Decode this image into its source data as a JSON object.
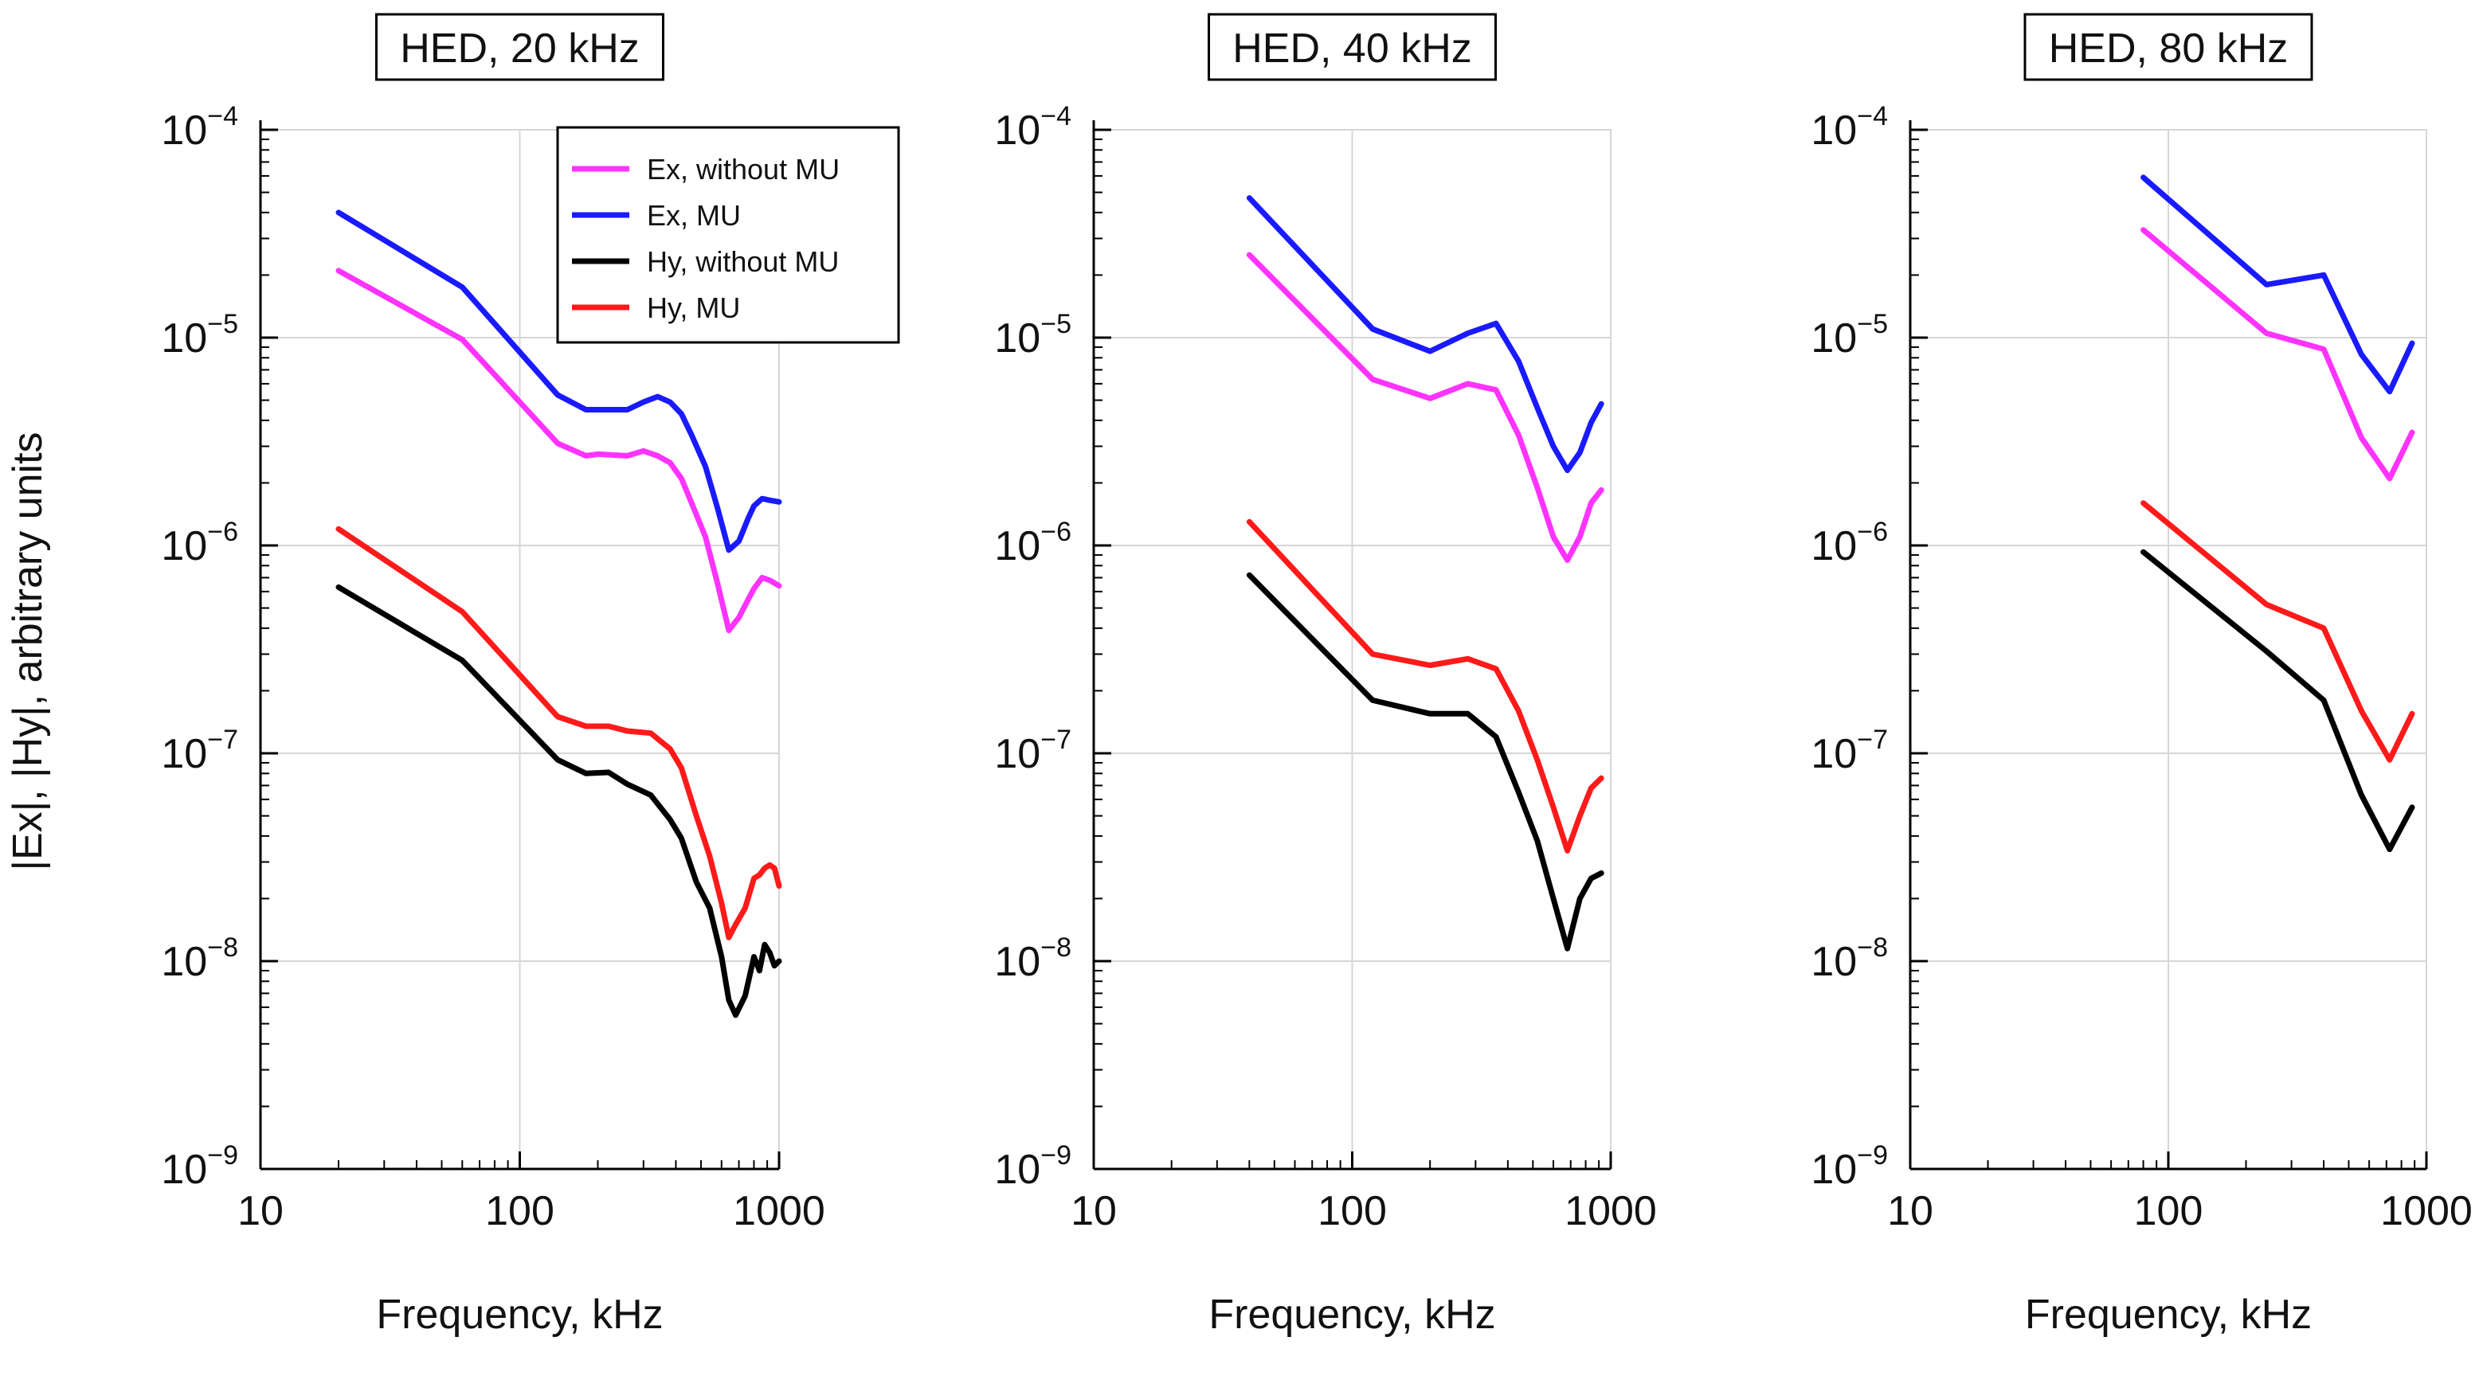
{
  "page_ylabel": "|Ex|, |Hy|, arbitrary units",
  "legend": [
    {
      "label": "Ex, without MU",
      "color": "#ff33ff"
    },
    {
      "label": "Ex, MU",
      "color": "#1a1aff"
    },
    {
      "label": "Hy, without MU",
      "color": "#000000"
    },
    {
      "label": "Hy, MU",
      "color": "#ff1a1a"
    }
  ],
  "chart_data": [
    {
      "type": "line",
      "title": "HED, 20 kHz",
      "xlabel": "Frequency, kHz",
      "ylabel": "|Ex|, |Hy|, arbitrary units",
      "xscale": "log",
      "yscale": "log",
      "xlim": [
        10,
        1000
      ],
      "ylim": [
        1e-09,
        0.0001
      ],
      "xticks": [
        {
          "v": 10,
          "label": "10"
        },
        {
          "v": 100,
          "label": "100"
        },
        {
          "v": 1000,
          "label": "1000"
        }
      ],
      "yticks": [
        {
          "v": 1e-09,
          "label": "10",
          "exp": "−9"
        },
        {
          "v": 1e-08,
          "label": "10",
          "exp": "−8"
        },
        {
          "v": 1e-07,
          "label": "10",
          "exp": "−7"
        },
        {
          "v": 1e-06,
          "label": "10",
          "exp": "−6"
        },
        {
          "v": 1e-05,
          "label": "10",
          "exp": "−5"
        },
        {
          "v": 0.0001,
          "label": "10",
          "exp": "−4"
        }
      ],
      "grid": true,
      "legend": true,
      "series": [
        {
          "name": "Ex, without MU",
          "color": "#ff33ff",
          "x": [
            20,
            60,
            140,
            180,
            200,
            260,
            300,
            340,
            380,
            420,
            460,
            520,
            580,
            640,
            700,
            760,
            800,
            860,
            920,
            1000
          ],
          "y": [
            2.1e-05,
            9.8e-06,
            3.1e-06,
            2.7e-06,
            2.75e-06,
            2.7e-06,
            2.85e-06,
            2.7e-06,
            2.5e-06,
            2.1e-06,
            1.6e-06,
            1.1e-06,
            6.5e-07,
            3.9e-07,
            4.5e-07,
            5.5e-07,
            6.2e-07,
            7e-07,
            6.8e-07,
            6.4e-07
          ]
        },
        {
          "name": "Ex, MU",
          "color": "#1a1aff",
          "x": [
            20,
            60,
            140,
            180,
            200,
            260,
            300,
            340,
            380,
            420,
            460,
            520,
            580,
            640,
            700,
            760,
            800,
            860,
            920,
            1000
          ],
          "y": [
            4e-05,
            1.75e-05,
            5.3e-06,
            4.5e-06,
            4.5e-06,
            4.5e-06,
            4.9e-06,
            5.2e-06,
            4.9e-06,
            4.3e-06,
            3.4e-06,
            2.4e-06,
            1.5e-06,
            9.5e-07,
            1.05e-06,
            1.35e-06,
            1.55e-06,
            1.68e-06,
            1.65e-06,
            1.62e-06
          ]
        },
        {
          "name": "Hy, without MU",
          "color": "#000000",
          "x": [
            20,
            60,
            140,
            180,
            220,
            260,
            320,
            380,
            420,
            480,
            540,
            600,
            640,
            680,
            740,
            800,
            840,
            880,
            920,
            960,
            1000
          ],
          "y": [
            6.3e-07,
            2.8e-07,
            9.3e-08,
            8e-08,
            8.1e-08,
            7.1e-08,
            6.3e-08,
            4.8e-08,
            3.9e-08,
            2.4e-08,
            1.8e-08,
            1.05e-08,
            6.5e-09,
            5.5e-09,
            6.8e-09,
            1.05e-08,
            9e-09,
            1.2e-08,
            1.1e-08,
            9.5e-09,
            1e-08
          ]
        },
        {
          "name": "Hy, MU",
          "color": "#ff1a1a",
          "x": [
            20,
            60,
            140,
            180,
            220,
            260,
            320,
            380,
            420,
            480,
            540,
            600,
            640,
            680,
            740,
            800,
            840,
            880,
            920,
            960,
            1000
          ],
          "y": [
            1.2e-06,
            4.8e-07,
            1.5e-07,
            1.35e-07,
            1.35e-07,
            1.28e-07,
            1.25e-07,
            1.05e-07,
            8.5e-08,
            5e-08,
            3.2e-08,
            1.9e-08,
            1.3e-08,
            1.5e-08,
            1.8e-08,
            2.5e-08,
            2.6e-08,
            2.8e-08,
            2.9e-08,
            2.8e-08,
            2.3e-08
          ]
        }
      ]
    },
    {
      "type": "line",
      "title": "HED, 40 kHz",
      "xlabel": "Frequency, kHz",
      "ylabel": "",
      "xscale": "log",
      "yscale": "log",
      "xlim": [
        10,
        1000
      ],
      "ylim": [
        1e-09,
        0.0001
      ],
      "xticks": [
        {
          "v": 10,
          "label": "10"
        },
        {
          "v": 100,
          "label": "100"
        },
        {
          "v": 1000,
          "label": "1000"
        }
      ],
      "yticks": [
        {
          "v": 1e-09,
          "label": "10",
          "exp": "−9"
        },
        {
          "v": 1e-08,
          "label": "10",
          "exp": "−8"
        },
        {
          "v": 1e-07,
          "label": "10",
          "exp": "−7"
        },
        {
          "v": 1e-06,
          "label": "10",
          "exp": "−6"
        },
        {
          "v": 1e-05,
          "label": "10",
          "exp": "−5"
        },
        {
          "v": 0.0001,
          "label": "10",
          "exp": "−4"
        }
      ],
      "grid": true,
      "legend": false,
      "series": [
        {
          "name": "Ex, without MU",
          "color": "#ff33ff",
          "x": [
            40,
            120,
            200,
            280,
            360,
            440,
            520,
            600,
            680,
            760,
            840,
            920
          ],
          "y": [
            2.5e-05,
            6.3e-06,
            5.1e-06,
            6e-06,
            5.6e-06,
            3.4e-06,
            1.9e-06,
            1.1e-06,
            8.5e-07,
            1.1e-06,
            1.6e-06,
            1.85e-06
          ]
        },
        {
          "name": "Ex, MU",
          "color": "#1a1aff",
          "x": [
            40,
            120,
            200,
            280,
            360,
            440,
            520,
            600,
            680,
            760,
            840,
            920
          ],
          "y": [
            4.7e-05,
            1.1e-05,
            8.6e-06,
            1.05e-05,
            1.17e-05,
            7.7e-06,
            4.6e-06,
            3e-06,
            2.3e-06,
            2.8e-06,
            3.9e-06,
            4.8e-06
          ]
        },
        {
          "name": "Hy, without MU",
          "color": "#000000",
          "x": [
            40,
            120,
            200,
            280,
            360,
            440,
            520,
            600,
            680,
            760,
            840,
            920
          ],
          "y": [
            7.2e-07,
            1.8e-07,
            1.55e-07,
            1.55e-07,
            1.2e-07,
            6.5e-08,
            3.8e-08,
            2e-08,
            1.15e-08,
            2e-08,
            2.5e-08,
            2.65e-08
          ]
        },
        {
          "name": "Hy, MU",
          "color": "#ff1a1a",
          "x": [
            40,
            120,
            200,
            280,
            360,
            440,
            520,
            600,
            680,
            760,
            840,
            920
          ],
          "y": [
            1.3e-06,
            3e-07,
            2.65e-07,
            2.85e-07,
            2.55e-07,
            1.6e-07,
            9.3e-08,
            5.5e-08,
            3.4e-08,
            5e-08,
            6.8e-08,
            7.6e-08
          ]
        }
      ]
    },
    {
      "type": "line",
      "title": "HED, 80 kHz",
      "xlabel": "Frequency, kHz",
      "ylabel": "",
      "xscale": "log",
      "yscale": "log",
      "xlim": [
        10,
        1000
      ],
      "ylim": [
        1e-09,
        0.0001
      ],
      "xticks": [
        {
          "v": 10,
          "label": "10"
        },
        {
          "v": 100,
          "label": "100"
        },
        {
          "v": 1000,
          "label": "1000"
        }
      ],
      "yticks": [
        {
          "v": 1e-09,
          "label": "10",
          "exp": "−9"
        },
        {
          "v": 1e-08,
          "label": "10",
          "exp": "−8"
        },
        {
          "v": 1e-07,
          "label": "10",
          "exp": "−7"
        },
        {
          "v": 1e-06,
          "label": "10",
          "exp": "−6"
        },
        {
          "v": 1e-05,
          "label": "10",
          "exp": "−5"
        },
        {
          "v": 0.0001,
          "label": "10",
          "exp": "−4"
        }
      ],
      "grid": true,
      "legend": false,
      "series": [
        {
          "name": "Ex, without MU",
          "color": "#ff33ff",
          "x": [
            80,
            240,
            400,
            560,
            720,
            880
          ],
          "y": [
            3.3e-05,
            1.05e-05,
            8.8e-06,
            3.3e-06,
            2.1e-06,
            3.5e-06
          ]
        },
        {
          "name": "Ex, MU",
          "color": "#1a1aff",
          "x": [
            80,
            240,
            400,
            560,
            720,
            880
          ],
          "y": [
            5.9e-05,
            1.8e-05,
            2e-05,
            8.3e-06,
            5.5e-06,
            9.4e-06
          ]
        },
        {
          "name": "Hy, without MU",
          "color": "#000000",
          "x": [
            80,
            240,
            400,
            560,
            720,
            880
          ],
          "y": [
            9.3e-07,
            3.1e-07,
            1.8e-07,
            6.3e-08,
            3.45e-08,
            5.5e-08
          ]
        },
        {
          "name": "Hy, MU",
          "color": "#ff1a1a",
          "x": [
            80,
            240,
            400,
            560,
            720,
            880
          ],
          "y": [
            1.6e-06,
            5.2e-07,
            4e-07,
            1.6e-07,
            9.3e-08,
            1.55e-07
          ]
        }
      ]
    }
  ]
}
